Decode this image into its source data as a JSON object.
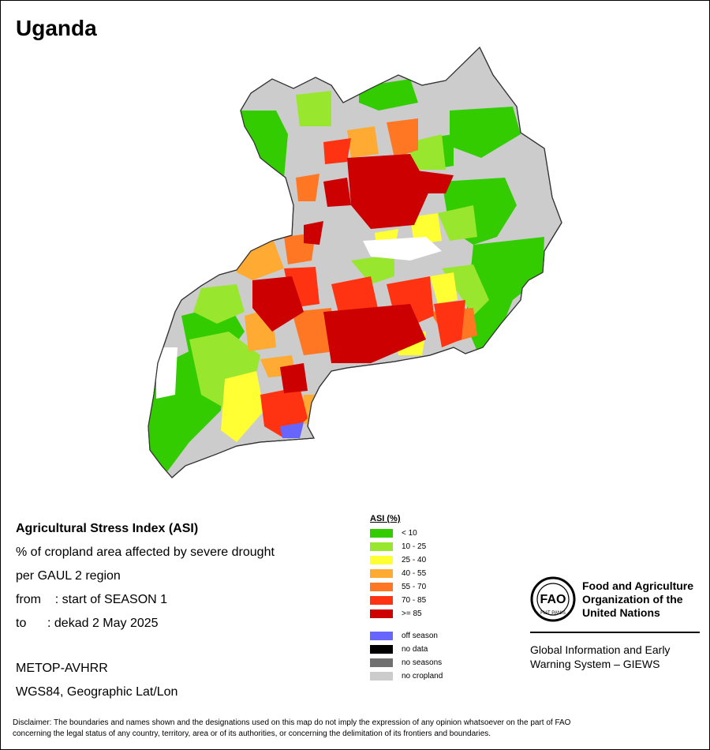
{
  "map_title": "Uganda",
  "info": {
    "heading": "Agricultural Stress Index (ASI)",
    "line1": "% of cropland area affected by severe drought",
    "line2": "per GAUL 2 region",
    "from_label": "from",
    "from_value": ": start of SEASON 1",
    "to_label": "to",
    "to_value": ": dekad 2 May 2025"
  },
  "tech": {
    "sensor": "METOP-AVHRR",
    "projection": "WGS84, Geographic Lat/Lon"
  },
  "legend": {
    "title": "ASI (%)",
    "classes": [
      {
        "label": "< 10",
        "color": "#33cc00"
      },
      {
        "label": "10 - 25",
        "color": "#99e62e"
      },
      {
        "label": "25 - 40",
        "color": "#ffff33"
      },
      {
        "label": "40 - 55",
        "color": "#ffaa33"
      },
      {
        "label": "55 - 70",
        "color": "#ff7722"
      },
      {
        "label": "70 - 85",
        "color": "#ff3311"
      },
      {
        "label": ">= 85",
        "color": "#cc0000"
      }
    ],
    "other": [
      {
        "label": "off season",
        "color": "#6666ff"
      },
      {
        "label": "no data",
        "color": "#000000"
      },
      {
        "label": "no seasons",
        "color": "#707070"
      },
      {
        "label": "no cropland",
        "color": "#cccccc"
      }
    ]
  },
  "fao": {
    "org_line1": "Food and Agriculture",
    "org_line2": "Organization of the",
    "org_line3": "United Nations",
    "giews_line1": "Global Information and Early",
    "giews_line2": "Warning System – GIEWS",
    "emblem_text": "FIAT PANIS",
    "emblem_letters": "FAO"
  },
  "disclaimer_line1": "Disclaimer: The boundaries and names shown and the designations used on this map do not imply the expression of any opinion whatsoever on the part of FAO",
  "disclaimer_line2": "concerning the legal status of any country, territory, area or of its authorities, or concerning the delimitation of its frontiers and boundaries."
}
